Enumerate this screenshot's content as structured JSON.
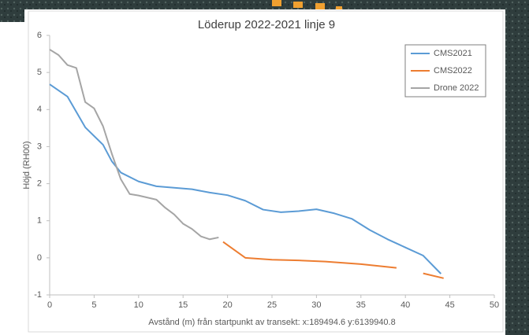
{
  "chart_data": {
    "type": "line",
    "title": "Löderup 2022-2021 linje 9",
    "xlabel": "Avstånd (m) från startpunkt av transekt: x:189494.6 y:6139940.8",
    "ylabel": "Höjd (RH00)",
    "xlim": [
      0,
      50
    ],
    "xticks": [
      0,
      5,
      10,
      15,
      20,
      25,
      30,
      35,
      40,
      45,
      50
    ],
    "ylim": [
      -1,
      6
    ],
    "yticks": [
      -1,
      0,
      1,
      2,
      3,
      4,
      5,
      6
    ],
    "grid": false,
    "legend": "top-right",
    "series": [
      {
        "name": "CMS2021",
        "color": "#5b9bd5",
        "x": [
          0,
          2,
          4,
          6,
          7,
          8,
          10,
          12,
          14,
          16,
          18,
          20,
          22,
          24,
          26,
          28,
          30,
          32,
          34,
          36,
          38,
          40,
          42,
          44
        ],
        "values": [
          4.68,
          4.35,
          3.52,
          3.05,
          2.6,
          2.3,
          2.06,
          1.93,
          1.89,
          1.85,
          1.76,
          1.69,
          1.54,
          1.3,
          1.23,
          1.26,
          1.31,
          1.2,
          1.05,
          0.75,
          0.5,
          0.28,
          0.06,
          -0.43
        ]
      },
      {
        "name": "CMS2022",
        "color": "#ed7d31",
        "x": [
          19.5,
          22,
          25,
          28,
          31,
          35,
          39,
          null,
          42,
          44.3
        ],
        "values": [
          0.43,
          0.0,
          -0.05,
          -0.07,
          -0.1,
          -0.17,
          -0.27,
          null,
          -0.42,
          -0.55
        ]
      },
      {
        "name": "Drone 2022",
        "color": "#a5a5a5",
        "x": [
          0,
          1,
          2,
          3,
          4,
          5,
          6,
          7,
          8,
          9,
          10,
          12,
          13,
          14,
          15,
          16,
          17,
          18,
          19
        ],
        "values": [
          5.62,
          5.47,
          5.2,
          5.12,
          4.2,
          4.03,
          3.55,
          2.8,
          2.12,
          1.72,
          1.68,
          1.57,
          1.35,
          1.17,
          0.92,
          0.78,
          0.58,
          0.5,
          0.55
        ]
      }
    ]
  }
}
